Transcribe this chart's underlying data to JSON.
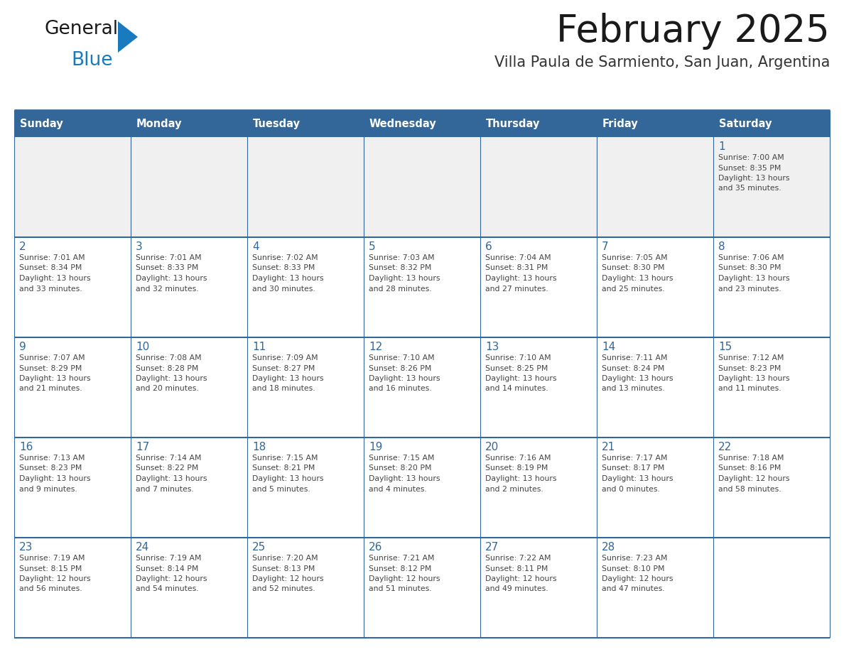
{
  "title": "February 2025",
  "subtitle": "Villa Paula de Sarmiento, San Juan, Argentina",
  "days_of_week": [
    "Sunday",
    "Monday",
    "Tuesday",
    "Wednesday",
    "Thursday",
    "Friday",
    "Saturday"
  ],
  "header_bg": "#336699",
  "header_text_color": "#ffffff",
  "cell_bg_light": "#f0f0f0",
  "cell_bg_white": "#ffffff",
  "cell_border_color": "#336699",
  "day_number_color": "#336699",
  "cell_text_color": "#444444",
  "title_color": "#1a1a1a",
  "subtitle_color": "#333333",
  "logo_general_color": "#1a1a1a",
  "logo_blue_color": "#1a7abf",
  "week_rows": [
    {
      "days": [
        {
          "day": null,
          "info": ""
        },
        {
          "day": null,
          "info": ""
        },
        {
          "day": null,
          "info": ""
        },
        {
          "day": null,
          "info": ""
        },
        {
          "day": null,
          "info": ""
        },
        {
          "day": null,
          "info": ""
        },
        {
          "day": 1,
          "info": "Sunrise: 7:00 AM\nSunset: 8:35 PM\nDaylight: 13 hours\nand 35 minutes."
        }
      ]
    },
    {
      "days": [
        {
          "day": 2,
          "info": "Sunrise: 7:01 AM\nSunset: 8:34 PM\nDaylight: 13 hours\nand 33 minutes."
        },
        {
          "day": 3,
          "info": "Sunrise: 7:01 AM\nSunset: 8:33 PM\nDaylight: 13 hours\nand 32 minutes."
        },
        {
          "day": 4,
          "info": "Sunrise: 7:02 AM\nSunset: 8:33 PM\nDaylight: 13 hours\nand 30 minutes."
        },
        {
          "day": 5,
          "info": "Sunrise: 7:03 AM\nSunset: 8:32 PM\nDaylight: 13 hours\nand 28 minutes."
        },
        {
          "day": 6,
          "info": "Sunrise: 7:04 AM\nSunset: 8:31 PM\nDaylight: 13 hours\nand 27 minutes."
        },
        {
          "day": 7,
          "info": "Sunrise: 7:05 AM\nSunset: 8:30 PM\nDaylight: 13 hours\nand 25 minutes."
        },
        {
          "day": 8,
          "info": "Sunrise: 7:06 AM\nSunset: 8:30 PM\nDaylight: 13 hours\nand 23 minutes."
        }
      ]
    },
    {
      "days": [
        {
          "day": 9,
          "info": "Sunrise: 7:07 AM\nSunset: 8:29 PM\nDaylight: 13 hours\nand 21 minutes."
        },
        {
          "day": 10,
          "info": "Sunrise: 7:08 AM\nSunset: 8:28 PM\nDaylight: 13 hours\nand 20 minutes."
        },
        {
          "day": 11,
          "info": "Sunrise: 7:09 AM\nSunset: 8:27 PM\nDaylight: 13 hours\nand 18 minutes."
        },
        {
          "day": 12,
          "info": "Sunrise: 7:10 AM\nSunset: 8:26 PM\nDaylight: 13 hours\nand 16 minutes."
        },
        {
          "day": 13,
          "info": "Sunrise: 7:10 AM\nSunset: 8:25 PM\nDaylight: 13 hours\nand 14 minutes."
        },
        {
          "day": 14,
          "info": "Sunrise: 7:11 AM\nSunset: 8:24 PM\nDaylight: 13 hours\nand 13 minutes."
        },
        {
          "day": 15,
          "info": "Sunrise: 7:12 AM\nSunset: 8:23 PM\nDaylight: 13 hours\nand 11 minutes."
        }
      ]
    },
    {
      "days": [
        {
          "day": 16,
          "info": "Sunrise: 7:13 AM\nSunset: 8:23 PM\nDaylight: 13 hours\nand 9 minutes."
        },
        {
          "day": 17,
          "info": "Sunrise: 7:14 AM\nSunset: 8:22 PM\nDaylight: 13 hours\nand 7 minutes."
        },
        {
          "day": 18,
          "info": "Sunrise: 7:15 AM\nSunset: 8:21 PM\nDaylight: 13 hours\nand 5 minutes."
        },
        {
          "day": 19,
          "info": "Sunrise: 7:15 AM\nSunset: 8:20 PM\nDaylight: 13 hours\nand 4 minutes."
        },
        {
          "day": 20,
          "info": "Sunrise: 7:16 AM\nSunset: 8:19 PM\nDaylight: 13 hours\nand 2 minutes."
        },
        {
          "day": 21,
          "info": "Sunrise: 7:17 AM\nSunset: 8:17 PM\nDaylight: 13 hours\nand 0 minutes."
        },
        {
          "day": 22,
          "info": "Sunrise: 7:18 AM\nSunset: 8:16 PM\nDaylight: 12 hours\nand 58 minutes."
        }
      ]
    },
    {
      "days": [
        {
          "day": 23,
          "info": "Sunrise: 7:19 AM\nSunset: 8:15 PM\nDaylight: 12 hours\nand 56 minutes."
        },
        {
          "day": 24,
          "info": "Sunrise: 7:19 AM\nSunset: 8:14 PM\nDaylight: 12 hours\nand 54 minutes."
        },
        {
          "day": 25,
          "info": "Sunrise: 7:20 AM\nSunset: 8:13 PM\nDaylight: 12 hours\nand 52 minutes."
        },
        {
          "day": 26,
          "info": "Sunrise: 7:21 AM\nSunset: 8:12 PM\nDaylight: 12 hours\nand 51 minutes."
        },
        {
          "day": 27,
          "info": "Sunrise: 7:22 AM\nSunset: 8:11 PM\nDaylight: 12 hours\nand 49 minutes."
        },
        {
          "day": 28,
          "info": "Sunrise: 7:23 AM\nSunset: 8:10 PM\nDaylight: 12 hours\nand 47 minutes."
        },
        {
          "day": null,
          "info": ""
        }
      ]
    }
  ]
}
